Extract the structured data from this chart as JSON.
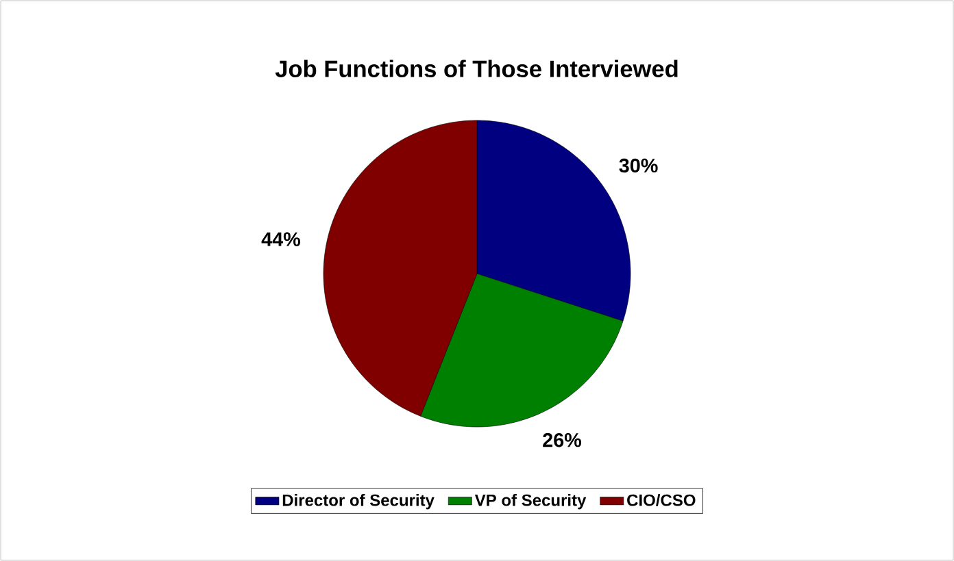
{
  "chart_data": {
    "type": "pie",
    "title": "Job Functions of Those Interviewed",
    "categories": [
      "Director of Security",
      "VP of Security",
      "CIO/CSO"
    ],
    "values": [
      30,
      26,
      44
    ],
    "colors": [
      "#000080",
      "#008000",
      "#800000"
    ],
    "value_labels": [
      "30%",
      "26%",
      "44%"
    ],
    "legend": "bottom"
  }
}
